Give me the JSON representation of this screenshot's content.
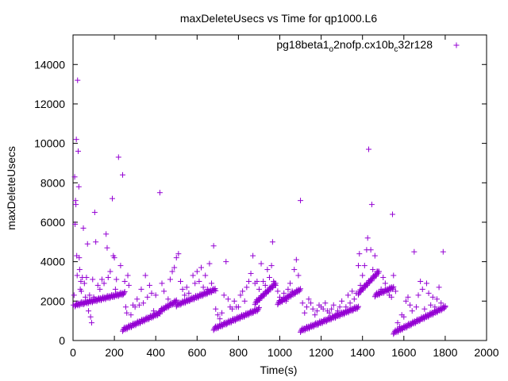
{
  "chart_data": {
    "type": "scatter",
    "title": "maxDeleteUsecs vs Time for qp1000.L6",
    "xlabel": "Time(s)",
    "ylabel": "maxDeleteUsecs",
    "xlim": [
      0,
      2000
    ],
    "ylim": [
      0,
      15500
    ],
    "x_ticks": [
      0,
      200,
      400,
      600,
      800,
      1000,
      1200,
      1400,
      1600,
      1800,
      2000
    ],
    "y_ticks": [
      0,
      2000,
      4000,
      6000,
      8000,
      10000,
      12000,
      14000
    ],
    "grid": false,
    "legend_position": "top-right",
    "marker": "+",
    "color": "#9400d3",
    "series": [
      {
        "legend_parts": [
          {
            "text": "pg18beta1",
            "sub": false
          },
          {
            "text": "o",
            "sub": true
          },
          {
            "text": "2nofp.cx10b",
            "sub": false
          },
          {
            "text": "c",
            "sub": true
          },
          {
            "text": "32r128",
            "sub": false
          }
        ],
        "points": [
          [
            2,
            1800
          ],
          [
            5,
            2300
          ],
          [
            8,
            8300
          ],
          [
            10,
            5900
          ],
          [
            12,
            7100
          ],
          [
            14,
            6900
          ],
          [
            16,
            10200
          ],
          [
            18,
            4300
          ],
          [
            20,
            3300
          ],
          [
            22,
            13200
          ],
          [
            25,
            9600
          ],
          [
            28,
            7800
          ],
          [
            30,
            4200
          ],
          [
            32,
            3600
          ],
          [
            35,
            2600
          ],
          [
            38,
            3000
          ],
          [
            40,
            2500
          ],
          [
            45,
            3200
          ],
          [
            50,
            5700
          ],
          [
            55,
            2900
          ],
          [
            60,
            2200
          ],
          [
            65,
            3200
          ],
          [
            70,
            4900
          ],
          [
            75,
            1500
          ],
          [
            80,
            2300
          ],
          [
            85,
            1200
          ],
          [
            90,
            900
          ],
          [
            95,
            3100
          ],
          [
            100,
            2200
          ],
          [
            105,
            6500
          ],
          [
            110,
            5000
          ],
          [
            120,
            2800
          ],
          [
            130,
            2600
          ],
          [
            140,
            3100
          ],
          [
            150,
            2900
          ],
          [
            160,
            5400
          ],
          [
            165,
            4700
          ],
          [
            170,
            3200
          ],
          [
            180,
            3500
          ],
          [
            190,
            7200
          ],
          [
            195,
            4300
          ],
          [
            200,
            4200
          ],
          [
            205,
            2600
          ],
          [
            210,
            3100
          ],
          [
            220,
            9300
          ],
          [
            230,
            3800
          ],
          [
            240,
            8400
          ],
          [
            250,
            3000
          ],
          [
            255,
            1700
          ],
          [
            260,
            1400
          ],
          [
            265,
            3300
          ],
          [
            270,
            2800
          ],
          [
            280,
            1300
          ],
          [
            290,
            1800
          ],
          [
            300,
            1700
          ],
          [
            310,
            2100
          ],
          [
            320,
            1800
          ],
          [
            330,
            2600
          ],
          [
            340,
            1900
          ],
          [
            350,
            3300
          ],
          [
            360,
            2200
          ],
          [
            370,
            2800
          ],
          [
            380,
            2400
          ],
          [
            390,
            1500
          ],
          [
            400,
            2300
          ],
          [
            420,
            7500
          ],
          [
            430,
            2900
          ],
          [
            440,
            2500
          ],
          [
            460,
            2100
          ],
          [
            470,
            3100
          ],
          [
            480,
            3500
          ],
          [
            490,
            3700
          ],
          [
            500,
            4200
          ],
          [
            510,
            4400
          ],
          [
            520,
            3000
          ],
          [
            530,
            2600
          ],
          [
            540,
            2300
          ],
          [
            550,
            2700
          ],
          [
            560,
            2400
          ],
          [
            570,
            2100
          ],
          [
            580,
            3300
          ],
          [
            590,
            2900
          ],
          [
            600,
            3500
          ],
          [
            610,
            3000
          ],
          [
            620,
            3700
          ],
          [
            630,
            2700
          ],
          [
            640,
            3300
          ],
          [
            650,
            2600
          ],
          [
            660,
            3900
          ],
          [
            670,
            2900
          ],
          [
            680,
            4800
          ],
          [
            690,
            1600
          ],
          [
            700,
            1300
          ],
          [
            710,
            1100
          ],
          [
            720,
            1400
          ],
          [
            730,
            2300
          ],
          [
            740,
            4000
          ],
          [
            750,
            2100
          ],
          [
            760,
            1700
          ],
          [
            770,
            1600
          ],
          [
            780,
            2000
          ],
          [
            790,
            1700
          ],
          [
            800,
            1700
          ],
          [
            810,
            2300
          ],
          [
            820,
            2500
          ],
          [
            830,
            2000
          ],
          [
            840,
            2700
          ],
          [
            850,
            3000
          ],
          [
            860,
            3400
          ],
          [
            870,
            4300
          ],
          [
            880,
            2900
          ],
          [
            890,
            3000
          ],
          [
            900,
            2600
          ],
          [
            910,
            3900
          ],
          [
            920,
            3000
          ],
          [
            930,
            2800
          ],
          [
            940,
            3600
          ],
          [
            950,
            3200
          ],
          [
            960,
            3800
          ],
          [
            965,
            5000
          ],
          [
            970,
            3000
          ],
          [
            980,
            2800
          ],
          [
            990,
            2500
          ],
          [
            1000,
            2200
          ],
          [
            1010,
            2000
          ],
          [
            1020,
            2400
          ],
          [
            1030,
            2000
          ],
          [
            1040,
            2600
          ],
          [
            1050,
            2900
          ],
          [
            1060,
            2500
          ],
          [
            1070,
            3600
          ],
          [
            1080,
            4100
          ],
          [
            1090,
            3300
          ],
          [
            1100,
            7100
          ],
          [
            1110,
            1900
          ],
          [
            1120,
            1400
          ],
          [
            1130,
            1700
          ],
          [
            1140,
            2100
          ],
          [
            1150,
            1900
          ],
          [
            1160,
            1600
          ],
          [
            1170,
            1300
          ],
          [
            1180,
            1500
          ],
          [
            1190,
            1800
          ],
          [
            1200,
            1700
          ],
          [
            1210,
            1600
          ],
          [
            1220,
            1900
          ],
          [
            1230,
            1500
          ],
          [
            1240,
            1400
          ],
          [
            1250,
            1600
          ],
          [
            1260,
            1800
          ],
          [
            1270,
            1300
          ],
          [
            1280,
            1500
          ],
          [
            1290,
            1700
          ],
          [
            1300,
            2000
          ],
          [
            1310,
            1400
          ],
          [
            1320,
            1700
          ],
          [
            1330,
            2300
          ],
          [
            1340,
            1900
          ],
          [
            1350,
            2500
          ],
          [
            1360,
            2100
          ],
          [
            1370,
            2400
          ],
          [
            1380,
            3800
          ],
          [
            1385,
            4400
          ],
          [
            1390,
            2800
          ],
          [
            1400,
            3300
          ],
          [
            1410,
            3800
          ],
          [
            1420,
            4600
          ],
          [
            1425,
            5200
          ],
          [
            1430,
            9700
          ],
          [
            1440,
            4600
          ],
          [
            1445,
            6900
          ],
          [
            1450,
            3600
          ],
          [
            1460,
            4300
          ],
          [
            1470,
            3500
          ],
          [
            1480,
            2400
          ],
          [
            1490,
            2600
          ],
          [
            1500,
            3200
          ],
          [
            1510,
            2900
          ],
          [
            1520,
            2600
          ],
          [
            1530,
            2300
          ],
          [
            1540,
            2200
          ],
          [
            1545,
            6400
          ],
          [
            1550,
            3300
          ],
          [
            1560,
            2500
          ],
          [
            1570,
            900
          ],
          [
            1580,
            700
          ],
          [
            1590,
            1300
          ],
          [
            1600,
            1200
          ],
          [
            1610,
            2000
          ],
          [
            1620,
            2200
          ],
          [
            1630,
            1800
          ],
          [
            1640,
            1500
          ],
          [
            1650,
            4500
          ],
          [
            1660,
            1700
          ],
          [
            1670,
            2300
          ],
          [
            1680,
            3000
          ],
          [
            1690,
            2600
          ],
          [
            1700,
            1600
          ],
          [
            1710,
            2900
          ],
          [
            1720,
            2400
          ],
          [
            1730,
            1800
          ],
          [
            1740,
            2200
          ],
          [
            1750,
            1700
          ],
          [
            1760,
            2100
          ],
          [
            1770,
            2700
          ],
          [
            1780,
            1900
          ],
          [
            1790,
            4500
          ],
          [
            1800,
            1700
          ]
        ],
        "trends": [
          [
            10,
            250,
            1800,
            2400
          ],
          [
            240,
            420,
            550,
            1400
          ],
          [
            420,
            500,
            1500,
            2000
          ],
          [
            500,
            690,
            1800,
            2600
          ],
          [
            680,
            900,
            600,
            1600
          ],
          [
            880,
            980,
            1900,
            2900
          ],
          [
            990,
            1100,
            1900,
            2600
          ],
          [
            1100,
            1380,
            500,
            1700
          ],
          [
            1380,
            1480,
            2400,
            3500
          ],
          [
            1460,
            1550,
            2300,
            2700
          ],
          [
            1550,
            1800,
            400,
            1700
          ]
        ]
      }
    ]
  }
}
